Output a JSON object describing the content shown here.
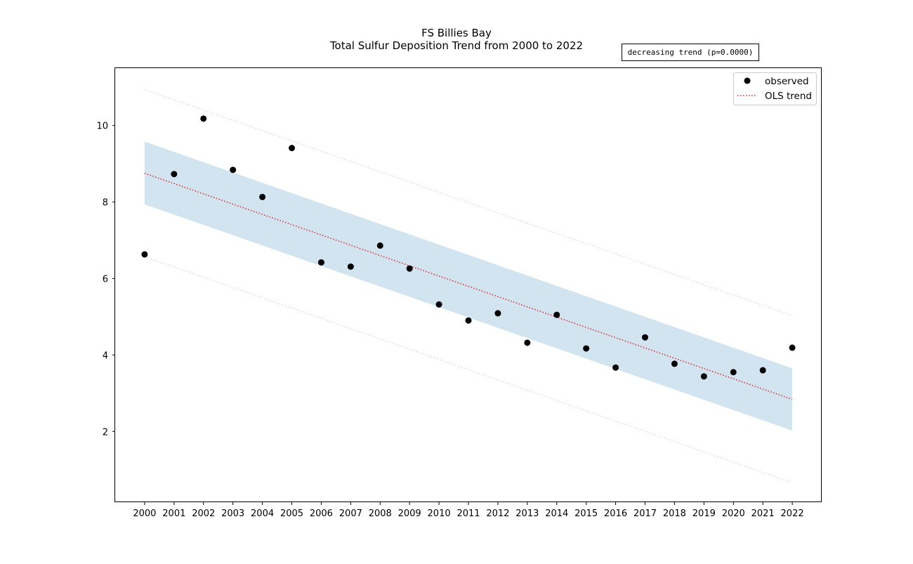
{
  "chart_data": {
    "type": "scatter",
    "title": "FS Billies Bay",
    "subtitle": "Total Sulfur Deposition Trend from 2000 to 2022",
    "annotation": "decreasing trend (p=0.0000)",
    "xlabel": "",
    "ylabel": "",
    "x": [
      2000,
      2001,
      2002,
      2003,
      2004,
      2005,
      2006,
      2007,
      2008,
      2009,
      2010,
      2011,
      2012,
      2013,
      2014,
      2015,
      2016,
      2017,
      2018,
      2019,
      2020,
      2021,
      2022
    ],
    "xlim": [
      1999.0,
      2023.0
    ],
    "ylim": [
      0.15,
      11.5
    ],
    "y_ticks": [
      2,
      4,
      6,
      8,
      10
    ],
    "grid": false,
    "legend_position": "top-right",
    "series": [
      {
        "name": "observed",
        "kind": "scatter",
        "color": "#000000",
        "values": [
          6.63,
          8.73,
          10.18,
          8.84,
          8.13,
          9.41,
          6.42,
          6.31,
          6.86,
          6.26,
          5.32,
          4.9,
          5.09,
          4.32,
          5.05,
          4.17,
          3.67,
          4.46,
          3.77,
          3.44,
          3.55,
          3.6,
          4.19
        ]
      },
      {
        "name": "OLS trend",
        "kind": "line",
        "style": "dotted",
        "color": "#d62728",
        "start": 8.75,
        "end": 2.84
      }
    ],
    "confidence_band": {
      "color": "#1f77b4",
      "lower_start": 7.94,
      "lower_end": 2.02,
      "upper_start": 9.58,
      "upper_end": 3.65
    },
    "prediction_band": {
      "color": "#d3d3d3",
      "lower_start": 6.57,
      "lower_end": 0.66,
      "upper_start": 10.94,
      "upper_end": 5.03
    }
  }
}
